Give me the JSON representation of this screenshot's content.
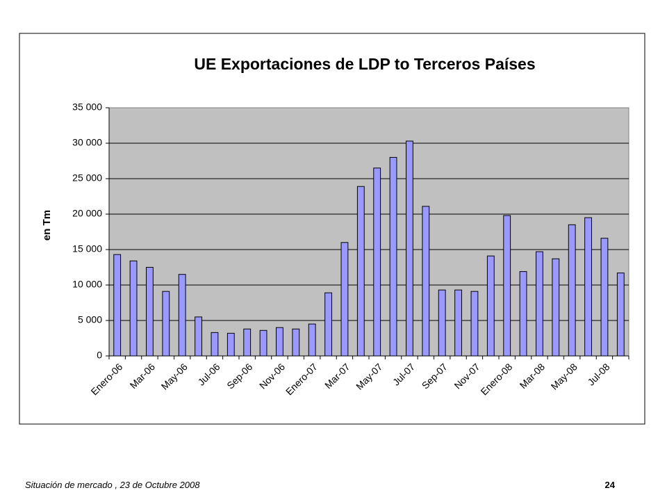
{
  "chart_data": {
    "type": "bar",
    "title": "UE Exportaciones de LDP to Terceros Países",
    "ylabel": "en Tm",
    "categories": [
      "Enero-06",
      null,
      "Mar-06",
      null,
      "May-06",
      null,
      "Jul-06",
      null,
      "Sep-06",
      null,
      "Nov-06",
      null,
      "Enero-07",
      null,
      "Mar-07",
      null,
      "May-07",
      null,
      "Jul-07",
      null,
      "Sep-07",
      null,
      "Nov-07",
      null,
      "Enero-08",
      null,
      "Mar-08",
      null,
      "May-08",
      null,
      "Jul-08",
      null
    ],
    "values": [
      14300,
      13400,
      12500,
      9100,
      11500,
      5500,
      3300,
      3200,
      3800,
      3600,
      4000,
      3800,
      4500,
      8900,
      16000,
      23900,
      26500,
      28000,
      30300,
      21100,
      9300,
      9300,
      9100,
      14100,
      19800,
      11900,
      14700,
      13700,
      18500,
      19500,
      16600,
      11700
    ],
    "color": "#9999ff",
    "plot_background": "#c0c0c0",
    "ylim": [
      0,
      35000
    ],
    "yticks": [
      0,
      {
        "value": 5000,
        "label": "5 000"
      },
      {
        "value": 10000,
        "label": "10 000"
      },
      {
        "value": 15000,
        "label": "15 000"
      },
      {
        "value": 20000,
        "label": "20 000"
      },
      {
        "value": 25000,
        "label": "25 000"
      },
      {
        "value": 30000,
        "label": "30 000"
      },
      {
        "value": 35000,
        "label": "35 000"
      }
    ],
    "grid": true
  },
  "footer": {
    "text": "Situación de mercado , 23 de  Octubre 2008",
    "page": "24"
  }
}
